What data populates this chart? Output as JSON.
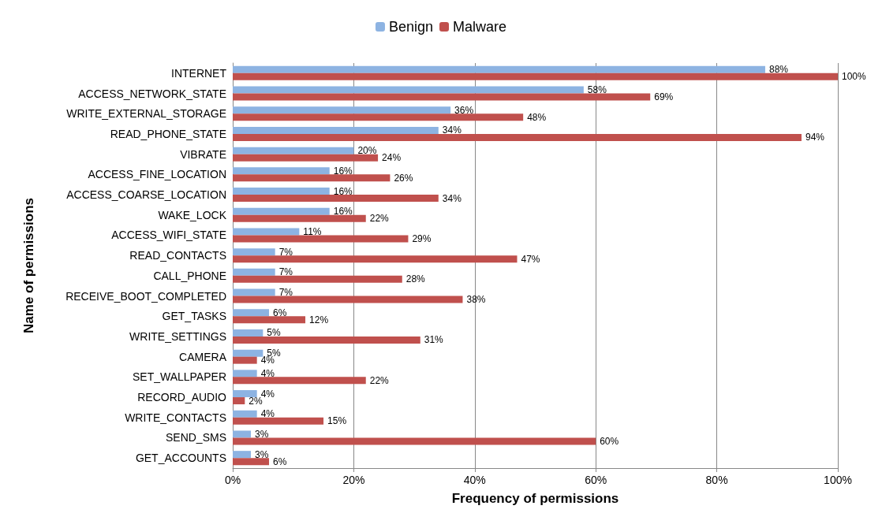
{
  "chart_data": {
    "type": "bar",
    "orientation": "horizontal",
    "xlabel": "Frequency of permissions",
    "ylabel": "Name of permissions",
    "categories": [
      "INTERNET",
      "ACCESS_NETWORK_STATE",
      "WRITE_EXTERNAL_STORAGE",
      "READ_PHONE_STATE",
      "VIBRATE",
      "ACCESS_FINE_LOCATION",
      "ACCESS_COARSE_LOCATION",
      "WAKE_LOCK",
      "ACCESS_WIFI_STATE",
      "READ_CONTACTS",
      "CALL_PHONE",
      "RECEIVE_BOOT_COMPLETED",
      "GET_TASKS",
      "WRITE_SETTINGS",
      "CAMERA",
      "SET_WALLPAPER",
      "RECORD_AUDIO",
      "WRITE_CONTACTS",
      "SEND_SMS",
      "GET_ACCOUNTS"
    ],
    "series": [
      {
        "name": "Benign",
        "color": "#8db3e2",
        "values": [
          88,
          58,
          36,
          34,
          20,
          16,
          16,
          16,
          11,
          7,
          7,
          7,
          6,
          5,
          5,
          4,
          4,
          4,
          3,
          3
        ],
        "value_labels": [
          "88%",
          "58%",
          "36%",
          "34%",
          "20%",
          "16%",
          "16%",
          "16%",
          "11%",
          "7%",
          "7%",
          "7%",
          "6%",
          "5%",
          "5%",
          "4%",
          "4%",
          "4%",
          "3%",
          "3%"
        ]
      },
      {
        "name": "Malware",
        "color": "#c0504d",
        "values": [
          100,
          69,
          48,
          94,
          24,
          26,
          34,
          22,
          29,
          47,
          28,
          38,
          12,
          31,
          4,
          22,
          2,
          15,
          60,
          6
        ],
        "value_labels": [
          "100%",
          "69%",
          "48%",
          "94%",
          "24%",
          "26%",
          "34%",
          "22%",
          "29%",
          "47%",
          "28%",
          "38%",
          "12%",
          "31%",
          "4%",
          "22%",
          "2%",
          "15%",
          "60%",
          "6%"
        ]
      }
    ],
    "xlim": [
      0,
      100
    ],
    "xticks": [
      {
        "value": 0,
        "label": "0%"
      },
      {
        "value": 20,
        "label": "20%"
      },
      {
        "value": 40,
        "label": "40%"
      },
      {
        "value": 60,
        "label": "60%"
      },
      {
        "value": 80,
        "label": "80%"
      },
      {
        "value": 100,
        "label": "100%"
      }
    ],
    "grid": "x",
    "legend": "top"
  }
}
